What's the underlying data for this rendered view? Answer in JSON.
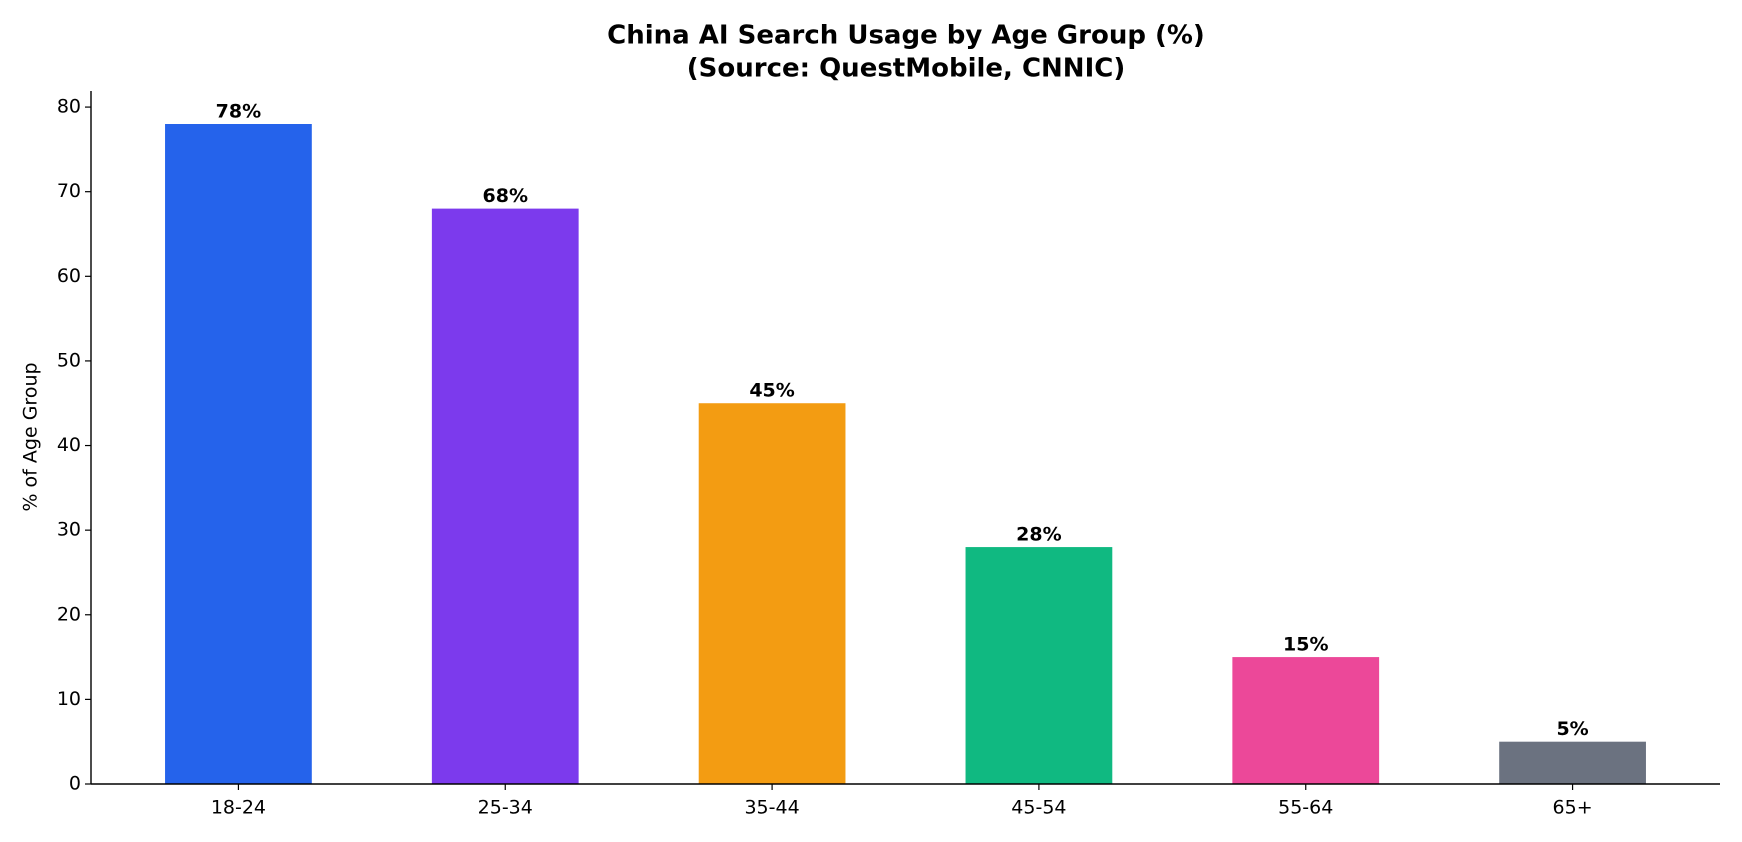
{
  "chart_data": {
    "type": "bar",
    "title": "China AI Search Usage by Age Group (%)",
    "subtitle": "(Source: QuestMobile, CNNIC)",
    "y_label": "% of Age Group",
    "categories": [
      "18-24",
      "25-34",
      "35-44",
      "45-54",
      "55-64",
      "65+"
    ],
    "values": [
      78,
      68,
      45,
      28,
      15,
      5
    ],
    "value_labels": [
      "78%",
      "68%",
      "45%",
      "28%",
      "15%",
      "5%"
    ],
    "colors": [
      "#2563eb",
      "#7c3aed",
      "#f39c12",
      "#10b981",
      "#ec4899",
      "#6b7280"
    ],
    "ylim": [
      0,
      81.9
    ],
    "yticks": [
      0,
      10,
      20,
      30,
      40,
      50,
      60,
      70,
      80
    ],
    "grid": false
  }
}
